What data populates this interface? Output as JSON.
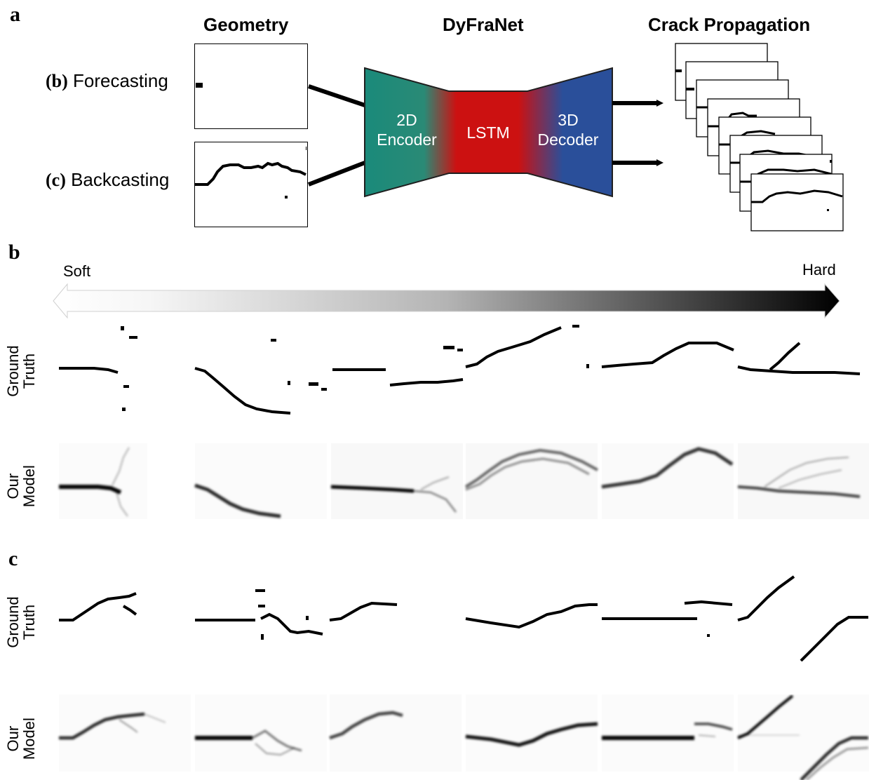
{
  "panels": {
    "a": "a",
    "b": "b",
    "c": "c"
  },
  "overview": {
    "geometry_title": "Geometry",
    "network_title": "DyFraNet",
    "output_title": "Crack Propagation",
    "forecasting_prefix": "(b)",
    "forecasting_label": "Forecasting",
    "backcasting_prefix": "(c)",
    "backcasting_label": "Backcasting",
    "encoder_line1": "2D",
    "encoder_line2": "Encoder",
    "lstm_label": "LSTM",
    "decoder_line1": "3D",
    "decoder_line2": "Decoder",
    "colors": {
      "encoder": "#1a8a7a",
      "lstm": "#cc1111",
      "decoder": "#2a4f9a"
    }
  },
  "scale": {
    "soft_label": "Soft",
    "hard_label": "Hard"
  },
  "rows": {
    "ground_truth_line1": "Ground",
    "ground_truth_line2": "Truth",
    "model_line1": "Our",
    "model_line2": "Model"
  }
}
